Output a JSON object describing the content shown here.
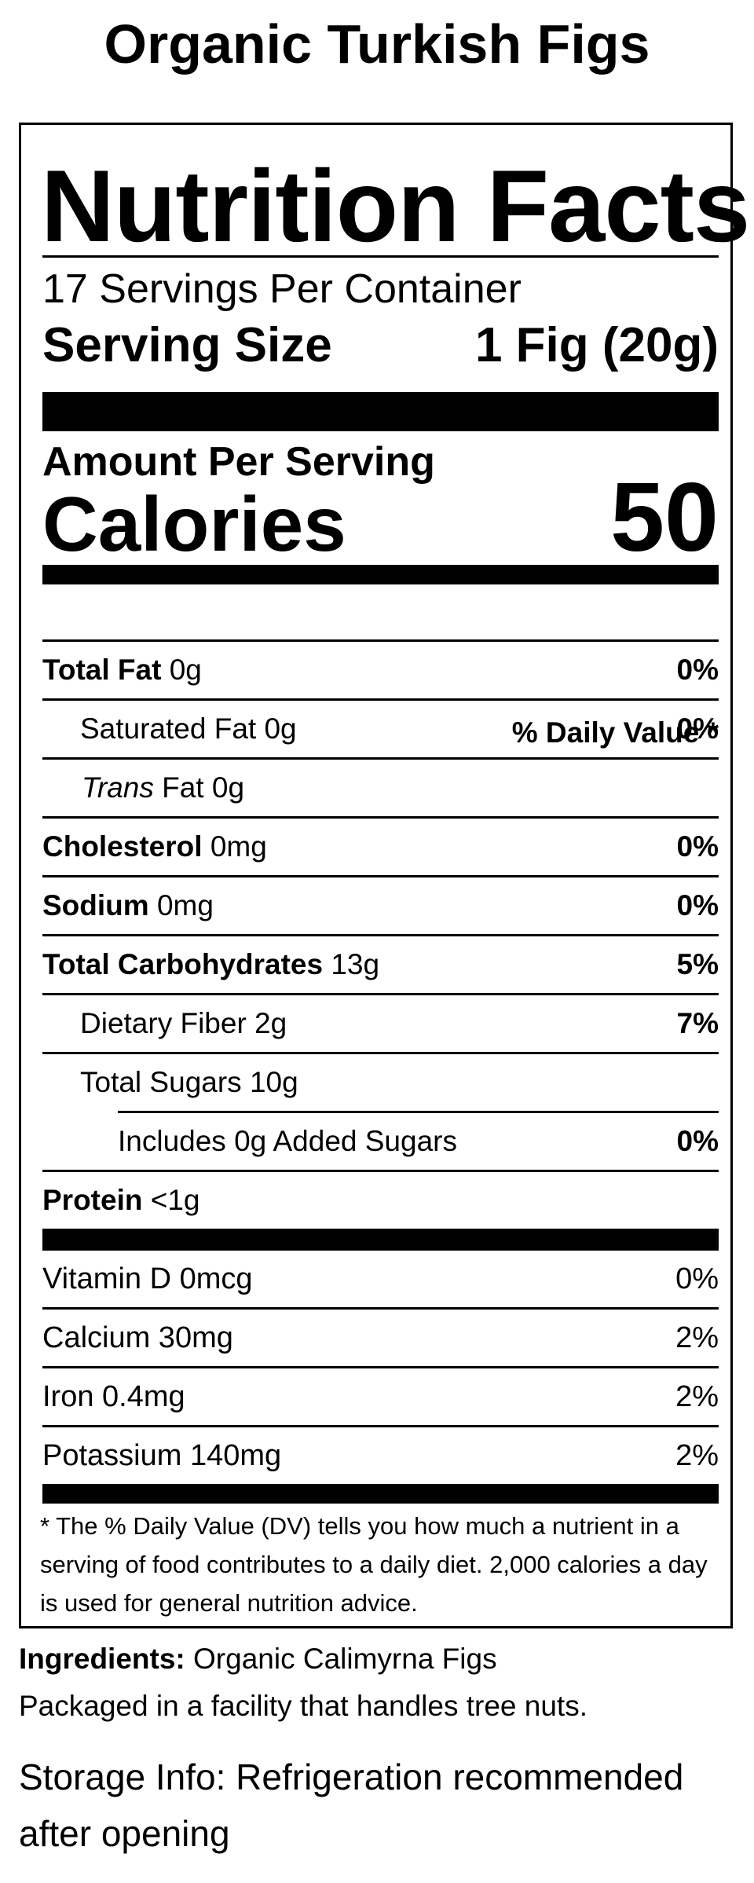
{
  "product_title": "Organic Turkish Figs",
  "label": {
    "heading": "Nutrition Facts",
    "servings_per_container": "17 Servings Per Container",
    "serving_size_label": "Serving Size",
    "serving_size_value": "1 Fig (20g)",
    "amount_per_serving": "Amount Per Serving",
    "calories_label": "Calories",
    "calories_value": "50",
    "daily_value_header": "% Daily Value *",
    "nutrients": {
      "total_fat": {
        "name": "Total Fat",
        "amount": " 0g",
        "dv": "0%"
      },
      "saturated_fat": {
        "name": "Saturated Fat 0g",
        "dv": "0%"
      },
      "trans_fat": {
        "name_italic": "Trans",
        "name_rest": " Fat 0g"
      },
      "cholesterol": {
        "name": "Cholesterol",
        "amount": " 0mg",
        "dv": "0%"
      },
      "sodium": {
        "name": "Sodium",
        "amount": " 0mg",
        "dv": "0%"
      },
      "total_carbohydrates": {
        "name": "Total Carbohydrates",
        "amount": " 13g",
        "dv": "5%"
      },
      "dietary_fiber": {
        "name": "Dietary Fiber 2g",
        "dv": "7%"
      },
      "total_sugars": {
        "name": "Total Sugars 10g"
      },
      "added_sugars": {
        "name": "Includes 0g Added Sugars",
        "dv": "0%"
      },
      "protein": {
        "name": "Protein",
        "amount": " <1g"
      }
    },
    "vitamins": [
      {
        "name": "Vitamin D 0mcg",
        "dv": "0%"
      },
      {
        "name": "Calcium 30mg",
        "dv": "2%"
      },
      {
        "name": "Iron 0.4mg",
        "dv": "2%"
      },
      {
        "name": "Potassium 140mg",
        "dv": "2%"
      }
    ],
    "footnote": "* The % Daily Value (DV) tells you how much a nutrient in a serving of food contributes to a daily diet. 2,000 calories a day is used for general nutrition advice."
  },
  "ingredients_label": "Ingredients:",
  "ingredients_value": " Organic Calimyrna Figs",
  "facility_note": "Packaged in a facility that handles tree nuts.",
  "storage_info": "Storage Info:  Refrigeration recommended after opening"
}
